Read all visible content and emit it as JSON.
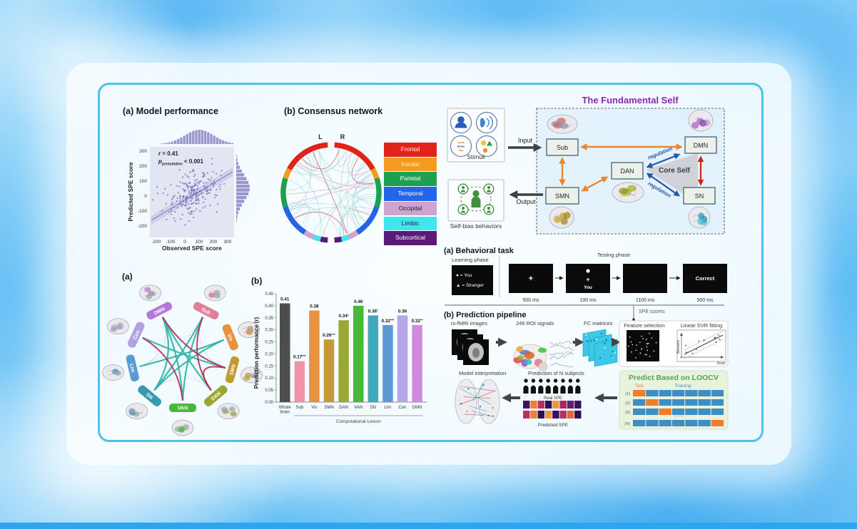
{
  "scatter": {
    "panel_label": "(a) Model performance",
    "r_var": "r",
    "r_eq": " = 0.41",
    "p_var": "p",
    "p_sub": "permutation",
    "p_eq": " < 0.001",
    "xlabel": "Observed SPE score",
    "ylabel": "Predicted SPE score",
    "x_ticks": [
      "-200",
      "-100",
      "0",
      "100",
      "200",
      "300"
    ],
    "y_ticks": [
      "300",
      "200",
      "100",
      "0",
      "-100",
      "-200"
    ]
  },
  "consensus": {
    "panel_label": "(b) Consensus network",
    "hemisphere_labels": [
      "L",
      "R"
    ],
    "legend": [
      {
        "label": "Frontal",
        "color": "#e2231a",
        "text": "#ffffff"
      },
      {
        "label": "Insular",
        "color": "#f59c20",
        "text": "#fdeecb"
      },
      {
        "label": "Parietal",
        "color": "#1da04f",
        "text": "#ffffff"
      },
      {
        "label": "Temporal",
        "color": "#2465e8",
        "text": "#ffffff"
      },
      {
        "label": "Occipital",
        "color": "#cfa3cf",
        "text": "#222222"
      },
      {
        "label": "Limbic",
        "color": "#3fe5ef",
        "text": "#222222"
      },
      {
        "label": "Subcortical",
        "color": "#5a1a78",
        "text": "#ffffff"
      }
    ],
    "segment_fractions": [
      0.33,
      0.07,
      0.2,
      0.23,
      0.07,
      0.05,
      0.05
    ]
  },
  "fundamental": {
    "title": "The Fundamental Self",
    "stimuli_label": "Stimuli",
    "selfbias_label": "Self-bias behaviors",
    "input_label": "Input",
    "output_label": "Output",
    "core_label": "Core Self",
    "regulation_label": "regulation",
    "nodes": {
      "sub": "Sub",
      "dmn": "DMN",
      "dan": "DAN",
      "smn": "SMN",
      "sn": "SN"
    },
    "word_stimuli": [
      "weak",
      "brave",
      "shy"
    ]
  },
  "task": {
    "title": "(a) Behavioral task",
    "learning_label": "Learning phase",
    "testing_label": "Testing phase",
    "cue_lines": [
      "● = You",
      "▲ = Stranger"
    ],
    "screens": [
      {
        "type": "fixation",
        "symbol": "+",
        "time": "500 ms"
      },
      {
        "type": "stimulus",
        "symbol": "●",
        "fix": "+",
        "word": "You",
        "time": "100 ms"
      },
      {
        "type": "blank",
        "symbol": "",
        "time": "1100 ms"
      },
      {
        "type": "feedback",
        "text": "Correct",
        "time": "500 ms"
      }
    ],
    "spe_label": "SPE scores"
  },
  "pipeline": {
    "title": "(b) Prediction pipeline",
    "step_labels": [
      "rs-fMRI images",
      "246 ROI signals",
      "FC matrices"
    ],
    "feature_label": "Feature selection",
    "svr_label": "Linear SVR fitting",
    "svr_axes": {
      "x": "Brain",
      "y": "Behavior"
    },
    "loocv": {
      "title": "Predict Based on LOOCV",
      "test_label": "Test",
      "training_label": "Training",
      "row_labels": [
        "(1)",
        "(2)",
        "(3)",
        "(N)"
      ],
      "gap_label": "· · ·",
      "n_folds": 7,
      "test_positions": [
        0,
        1,
        2,
        6
      ],
      "test_color": "#f07c2c",
      "train_color": "#3e8ec6"
    },
    "model_label": "Model interpretation",
    "subjects_label": "Prediction of N subjects",
    "real_label": "Real SPE",
    "predicted_label": "Predicted SPE",
    "real_strip": [
      "#3a1160",
      "#ef7f38",
      "#bb2e61",
      "#2c0e52",
      "#f29440",
      "#aa255c",
      "#611e70",
      "#3a1160"
    ],
    "predicted_strip": [
      "#bb2e61",
      "#ef7f38",
      "#2c0e52",
      "#f29440",
      "#3a1160",
      "#bb2e61",
      "#e86430",
      "#2c0e52"
    ]
  },
  "ring": {
    "panel_label": "(a)",
    "nodes": [
      {
        "name": "DMN",
        "color": "#b678d8",
        "angle": -27
      },
      {
        "name": "Sub",
        "color": "#e0809a",
        "angle": 27
      },
      {
        "name": "Vis",
        "color": "#e8923f",
        "angle": 68
      },
      {
        "name": "SMN",
        "color": "#c09c30",
        "angle": 105
      },
      {
        "name": "DAN",
        "color": "#9aa630",
        "angle": 140
      },
      {
        "name": "VAN",
        "color": "#48b83a",
        "angle": 180
      },
      {
        "name": "SN",
        "color": "#3898b0",
        "angle": 220
      },
      {
        "name": "Lim",
        "color": "#5b9bd5",
        "angle": 257
      },
      {
        "name": "Con",
        "color": "#b2a2e2",
        "angle": 295
      }
    ],
    "strong_edges_teal": [
      [
        "DMN",
        "VAN"
      ],
      [
        "DMN",
        "SN"
      ],
      [
        "DMN",
        "DAN"
      ],
      [
        "Sub",
        "SN"
      ],
      [
        "Con",
        "SMN"
      ],
      [
        "Lim",
        "Vis"
      ],
      [
        "SN",
        "Vis"
      ],
      [
        "Sub",
        "VAN"
      ]
    ],
    "strong_edges_red": [
      [
        "DMN",
        "SMN"
      ],
      [
        "Sub",
        "DAN"
      ],
      [
        "SMN",
        "DAN"
      ],
      [
        "Con",
        "VAN"
      ]
    ]
  },
  "chart_data": [
    {
      "type": "scatter",
      "title": "Model performance",
      "r": 0.41,
      "p_permutation": "< 0.001",
      "xlabel": "Observed SPE score",
      "ylabel": "Predicted SPE score",
      "xlim": [
        -250,
        350
      ],
      "ylim": [
        -250,
        350
      ],
      "n_points_approx": 230,
      "fit": "positive linear with confidence band and marginal histograms"
    },
    {
      "type": "bar",
      "panel_label": "(b)",
      "categories": [
        "Whole brain",
        "Sub",
        "Vis",
        "SMN",
        "DAN",
        "VAN",
        "SN",
        "Lim",
        "Con",
        "DMN"
      ],
      "values": [
        0.41,
        0.17,
        0.38,
        0.26,
        0.34,
        0.4,
        0.36,
        0.32,
        0.36,
        0.32
      ],
      "bar_labels": [
        "0.41",
        "0.17***",
        "0.38",
        "0.26***",
        "0.34*",
        "0.40",
        "0.36*",
        "0.32***",
        "0.36",
        "0.32**"
      ],
      "colors": [
        "#4d4d4d",
        "#ef93a8",
        "#e89140",
        "#c49a38",
        "#9aa834",
        "#47b83a",
        "#3fa8bc",
        "#5b9bd5",
        "#b4a6e8",
        "#cf8ae0"
      ],
      "ylabel": "Prediction performance (r)",
      "xlabel": "Computational Lesion",
      "ylim": [
        0,
        0.45
      ],
      "yticks": [
        0,
        0.05,
        0.1,
        0.15,
        0.2,
        0.25,
        0.3,
        0.35,
        0.4,
        0.45
      ],
      "legend_position": "none",
      "grid": false
    }
  ]
}
